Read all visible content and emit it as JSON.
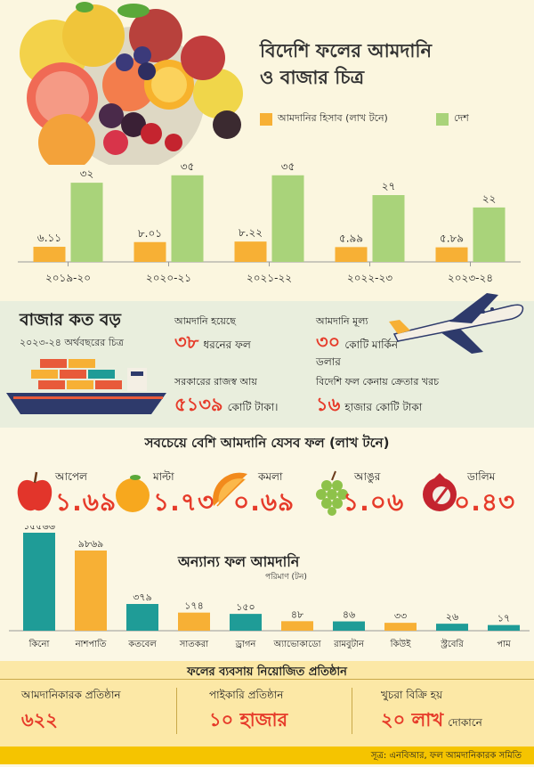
{
  "title_line1": "বিদেশি ফলের আমদানি",
  "title_line2": "ও বাজার চিত্র",
  "colors": {
    "import": "#f7b035",
    "country": "#a9d37a",
    "accent": "#e63b2a",
    "teal": "#1f9c97",
    "bar2": "#f7b035"
  },
  "chart_data": [
    {
      "type": "bar",
      "categories": [
        "২০১৯-২০",
        "২০২০-২১",
        "২০২১-২২",
        "২০২২-২৩",
        "২০২৩-২৪"
      ],
      "series": [
        {
          "name": "আমদানির হিসাব (লাখ টনে)",
          "values": [
            6.11,
            8.01,
            8.22,
            5.99,
            5.89
          ],
          "labels": [
            "৬.১১",
            "৮.০১",
            "৮.২২",
            "৫.৯৯",
            "৫.৮৯"
          ]
        },
        {
          "name": "দেশ",
          "values": [
            32,
            35,
            35,
            27,
            22
          ],
          "labels": [
            "৩২",
            "৩৫",
            "৩৫",
            "২৭",
            "২২"
          ]
        }
      ]
    },
    {
      "type": "bar",
      "title": "অন্যান্য ফল আমদানি",
      "subtitle": "পরিমাণ (টন)",
      "categories": [
        "কিনো",
        "নাশপাতি",
        "কতবেল",
        "সাতকরা",
        "ড্রাগন",
        "অ্যাভোকাডো",
        "রামবুটান",
        "কিউই",
        "স্ট্রবেরি",
        "পাম"
      ],
      "values": [
        15566,
        9869,
        379,
        174,
        150,
        48,
        46,
        33,
        26,
        17
      ],
      "labels": [
        "১৫৫৬৬",
        "৯৮৬৯",
        "৩৭৯",
        "১৭৪",
        "১৫০",
        "৪৮",
        "৪৬",
        "৩৩",
        "২৬",
        "১৭"
      ],
      "colors": [
        "#1f9c97",
        "#f7b035",
        "#1f9c97",
        "#f7b035",
        "#1f9c97",
        "#f7b035",
        "#1f9c97",
        "#f7b035",
        "#1f9c97",
        "#1f9c97"
      ]
    }
  ],
  "market": {
    "title": "বাজার কত বড়",
    "subtitle": "২০২৩-২৪ অর্থবছরের চিত্র",
    "s1_label": "আমদানি হয়েছে",
    "s1_big": "৩৮",
    "s1_unit": "ধরনের ফল",
    "s2_label": "আমদানি মূল্য",
    "s2_big": "৩০",
    "s2_unit": "কোটি মার্কিন",
    "s2_unit2": "ডলার",
    "s3_label": "সরকারের রাজস্ব আয়",
    "s3_big": "৫১৩৯",
    "s3_unit": "কোটি টাকা।",
    "s4_label": "বিদেশি ফল কেনায় ক্রেতার খরচ",
    "s4_big": "১৬",
    "s4_unit": "হাজার কোটি টাকা"
  },
  "top_fruits": {
    "title": "সবচেয়ে বেশি আমদানি যেসব ফল (লাখ টনে)",
    "items": [
      {
        "name": "আপেল",
        "value": "১.৬৯",
        "icon": "apple-icon"
      },
      {
        "name": "মাল্টা",
        "value": "১.৭৩",
        "icon": "malta-icon"
      },
      {
        "name": "কমলা",
        "value": "০.৬৯",
        "icon": "orange-slice-icon"
      },
      {
        "name": "আঙুর",
        "value": "১.০৬",
        "icon": "grape-icon"
      },
      {
        "name": "ডালিম",
        "value": "০.৪৩",
        "icon": "pomegranate-icon"
      }
    ]
  },
  "business": {
    "title": "ফলের ব্যবসায় নিয়োজিত প্রতিষ্ঠান",
    "b1_label": "আমদানিকারক প্রতিষ্ঠান",
    "b1_big": "৬২২",
    "b2_label": "পাইকারি প্রতিষ্ঠান",
    "b2_big": "১০ হাজার",
    "b3_label": "খুচরা বিক্রি হয়",
    "b3_big": "২০ লাখ",
    "b3_unit": "দোকানে"
  },
  "source": "সূত্র: এনবিআর, ফল আমদানিকারক সমিতি"
}
